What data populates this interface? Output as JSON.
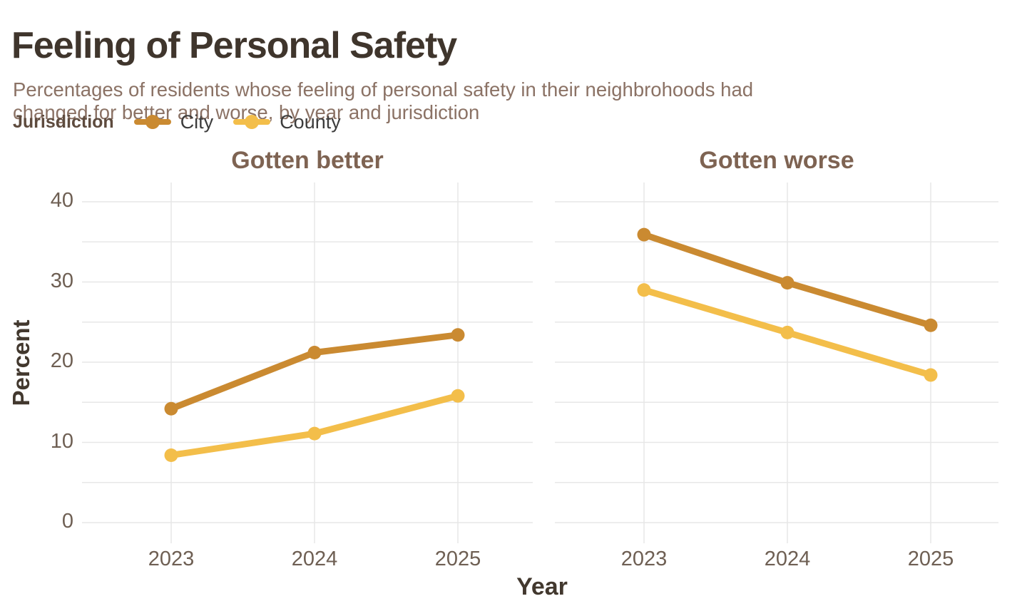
{
  "header": {
    "title": "Feeling of Personal Safety",
    "subtitle_line1": "Percentages of residents whose feeling of personal safety in their neighbrohoods had",
    "subtitle_line2": "changed for better and worse, by year and jurisdiction"
  },
  "legend": {
    "title": "Jurisdiction",
    "items": [
      {
        "label": "City",
        "color": "#CA8A31"
      },
      {
        "label": "County",
        "color": "#F3BE4A"
      }
    ]
  },
  "axes": {
    "y_title": "Percent",
    "x_title": "Year",
    "y_ticks": [
      0,
      10,
      20,
      30,
      40
    ],
    "y_range": [
      0,
      40
    ],
    "grid_step": 5
  },
  "colors": {
    "title": "#3F352C",
    "subtitle": "#8B7265",
    "legend_title": "#5E4B3E",
    "legend_text": "#3C3C3C",
    "panel_title": "#7E6352",
    "axis_text": "#6E5F53",
    "axis_title": "#42382E",
    "grid": "#E7E7E7",
    "city": "#CA8A31",
    "county": "#F3BE4A",
    "background": "#FFFFFF"
  },
  "chart_data": [
    {
      "type": "line",
      "title": "Gotten better",
      "categories": [
        "2023",
        "2024",
        "2025"
      ],
      "series": [
        {
          "name": "City",
          "color": "#CA8A31",
          "values": [
            14.2,
            21.2,
            23.4
          ]
        },
        {
          "name": "County",
          "color": "#F3BE4A",
          "values": [
            8.4,
            11.1,
            15.8
          ]
        }
      ],
      "xlabel": "Year",
      "ylabel": "Percent",
      "ylim": [
        0,
        40
      ],
      "yticks": [
        0,
        10,
        20,
        30,
        40
      ],
      "grid": true,
      "legend_position": "top"
    },
    {
      "type": "line",
      "title": "Gotten worse",
      "categories": [
        "2023",
        "2024",
        "2025"
      ],
      "series": [
        {
          "name": "City",
          "color": "#CA8A31",
          "values": [
            35.9,
            29.9,
            24.6
          ]
        },
        {
          "name": "County",
          "color": "#F3BE4A",
          "values": [
            29.0,
            23.7,
            18.4
          ]
        }
      ],
      "xlabel": "Year",
      "ylabel": "Percent",
      "ylim": [
        0,
        40
      ],
      "yticks": [
        0,
        10,
        20,
        30,
        40
      ],
      "grid": true,
      "legend_position": "top"
    }
  ]
}
